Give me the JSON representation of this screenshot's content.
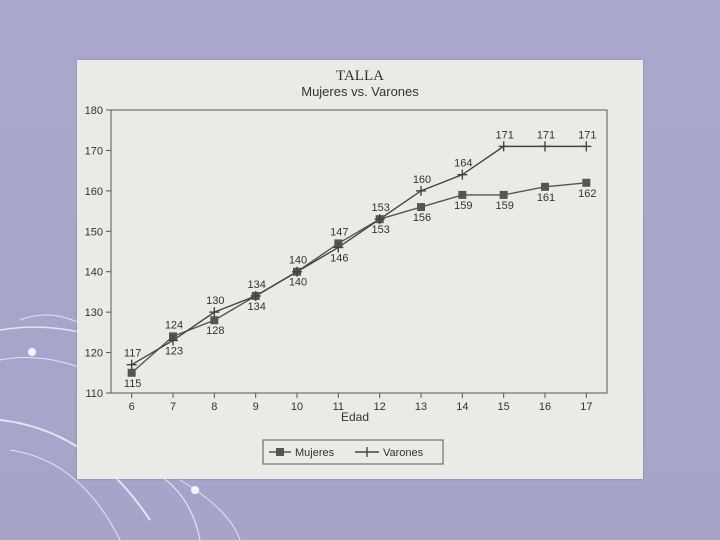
{
  "chart_data": {
    "type": "line",
    "title": "TALLA",
    "subtitle": "Mujeres vs. Varones",
    "xlabel": "Edad",
    "ylabel": "",
    "x": [
      6,
      7,
      8,
      9,
      10,
      11,
      12,
      13,
      14,
      15,
      16,
      17
    ],
    "xlim": [
      5.5,
      17.5
    ],
    "ylim": [
      110,
      180
    ],
    "yticks": [
      110,
      120,
      130,
      140,
      150,
      160,
      170,
      180
    ],
    "grid": false,
    "legend_position": "bottom-center",
    "series": [
      {
        "name": "Mujeres",
        "marker": "square",
        "color": "#555555",
        "values": [
          115,
          124,
          128,
          134,
          140,
          147,
          153,
          156,
          159,
          159,
          161,
          162
        ]
      },
      {
        "name": "Varones",
        "marker": "plus",
        "color": "#444444",
        "values": [
          117,
          123,
          130,
          134,
          140,
          146,
          153,
          160,
          164,
          171,
          171,
          171
        ]
      }
    ]
  }
}
